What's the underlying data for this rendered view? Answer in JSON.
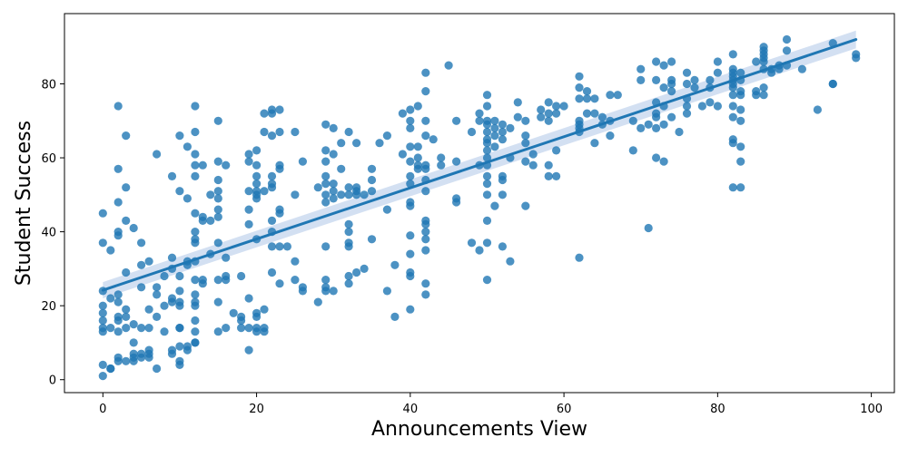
{
  "chart_data": {
    "type": "scatter",
    "title": "",
    "xlabel": "Announcements View",
    "ylabel": "Student Success",
    "xlim": [
      -5,
      103
    ],
    "ylim": [
      -3.5,
      99
    ],
    "xticks": [
      0,
      20,
      40,
      60,
      80,
      100
    ],
    "yticks": [
      0,
      20,
      40,
      60,
      80
    ],
    "grid": false,
    "legend": "none",
    "colors": {
      "points": "#1f77b4",
      "line": "#1f77b4",
      "band": "#aec7e8"
    },
    "regression": {
      "x": [
        0,
        98
      ],
      "y": [
        24.2,
        92.0
      ],
      "ci_lower": [
        22.0,
        89.6
      ],
      "ci_upper": [
        26.4,
        94.4
      ]
    },
    "points": [
      [
        0,
        1
      ],
      [
        0,
        4
      ],
      [
        0,
        13
      ],
      [
        0,
        14
      ],
      [
        0,
        16
      ],
      [
        0,
        18
      ],
      [
        0,
        20
      ],
      [
        0,
        24
      ],
      [
        0,
        37
      ],
      [
        0,
        45
      ],
      [
        1,
        3
      ],
      [
        1,
        3
      ],
      [
        1,
        14
      ],
      [
        1,
        22
      ],
      [
        1,
        35
      ],
      [
        2,
        5
      ],
      [
        2,
        6
      ],
      [
        2,
        13
      ],
      [
        2,
        16
      ],
      [
        2,
        17
      ],
      [
        2,
        21
      ],
      [
        2,
        23
      ],
      [
        2,
        39
      ],
      [
        2,
        40
      ],
      [
        2,
        48
      ],
      [
        2,
        57
      ],
      [
        2,
        74
      ],
      [
        3,
        5
      ],
      [
        3,
        14
      ],
      [
        3,
        17
      ],
      [
        3,
        19
      ],
      [
        3,
        29
      ],
      [
        3,
        43
      ],
      [
        3,
        52
      ],
      [
        3,
        66
      ],
      [
        4,
        5
      ],
      [
        4,
        6
      ],
      [
        4,
        7
      ],
      [
        4,
        10
      ],
      [
        4,
        15
      ],
      [
        4,
        41
      ],
      [
        5,
        6
      ],
      [
        5,
        7
      ],
      [
        5,
        14
      ],
      [
        5,
        25
      ],
      [
        5,
        31
      ],
      [
        5,
        37
      ],
      [
        6,
        6
      ],
      [
        6,
        7
      ],
      [
        6,
        8
      ],
      [
        6,
        14
      ],
      [
        6,
        19
      ],
      [
        6,
        32
      ],
      [
        7,
        3
      ],
      [
        7,
        17
      ],
      [
        7,
        23
      ],
      [
        7,
        25
      ],
      [
        7,
        61
      ],
      [
        8,
        13
      ],
      [
        8,
        20
      ],
      [
        8,
        28
      ],
      [
        9,
        7
      ],
      [
        9,
        8
      ],
      [
        9,
        21
      ],
      [
        9,
        22
      ],
      [
        9,
        30
      ],
      [
        9,
        33
      ],
      [
        9,
        55
      ],
      [
        10,
        4
      ],
      [
        10,
        5
      ],
      [
        10,
        9
      ],
      [
        10,
        14
      ],
      [
        10,
        14
      ],
      [
        10,
        20
      ],
      [
        10,
        21
      ],
      [
        10,
        24
      ],
      [
        10,
        28
      ],
      [
        10,
        51
      ],
      [
        10,
        66
      ],
      [
        11,
        8
      ],
      [
        11,
        9
      ],
      [
        11,
        31
      ],
      [
        11,
        32
      ],
      [
        11,
        49
      ],
      [
        11,
        63
      ],
      [
        12,
        10
      ],
      [
        12,
        10
      ],
      [
        12,
        13
      ],
      [
        12,
        16
      ],
      [
        12,
        20
      ],
      [
        12,
        21
      ],
      [
        12,
        23
      ],
      [
        12,
        27
      ],
      [
        12,
        32
      ],
      [
        12,
        37
      ],
      [
        12,
        38
      ],
      [
        12,
        40
      ],
      [
        12,
        45
      ],
      [
        12,
        55
      ],
      [
        12,
        58
      ],
      [
        12,
        61
      ],
      [
        12,
        67
      ],
      [
        12,
        74
      ],
      [
        13,
        26
      ],
      [
        13,
        27
      ],
      [
        13,
        43
      ],
      [
        13,
        44
      ],
      [
        13,
        58
      ],
      [
        14,
        34
      ],
      [
        14,
        43
      ],
      [
        14,
        50
      ],
      [
        15,
        13
      ],
      [
        15,
        21
      ],
      [
        15,
        27
      ],
      [
        15,
        37
      ],
      [
        15,
        44
      ],
      [
        15,
        46
      ],
      [
        15,
        49
      ],
      [
        15,
        51
      ],
      [
        15,
        54
      ],
      [
        15,
        59
      ],
      [
        15,
        70
      ],
      [
        16,
        14
      ],
      [
        16,
        27
      ],
      [
        16,
        28
      ],
      [
        16,
        33
      ],
      [
        16,
        58
      ],
      [
        17,
        18
      ],
      [
        18,
        14
      ],
      [
        18,
        16
      ],
      [
        18,
        17
      ],
      [
        18,
        28
      ],
      [
        19,
        8
      ],
      [
        19,
        14
      ],
      [
        19,
        22
      ],
      [
        19,
        42
      ],
      [
        19,
        46
      ],
      [
        19,
        51
      ],
      [
        19,
        59
      ],
      [
        19,
        61
      ],
      [
        20,
        13
      ],
      [
        20,
        14
      ],
      [
        20,
        17
      ],
      [
        20,
        18
      ],
      [
        20,
        38
      ],
      [
        20,
        49
      ],
      [
        20,
        50
      ],
      [
        20,
        51
      ],
      [
        20,
        53
      ],
      [
        20,
        55
      ],
      [
        20,
        58
      ],
      [
        20,
        62
      ],
      [
        21,
        13
      ],
      [
        21,
        14
      ],
      [
        21,
        19
      ],
      [
        21,
        51
      ],
      [
        21,
        67
      ],
      [
        21,
        72
      ],
      [
        22,
        29
      ],
      [
        22,
        36
      ],
      [
        22,
        40
      ],
      [
        22,
        43
      ],
      [
        22,
        52
      ],
      [
        22,
        53
      ],
      [
        22,
        55
      ],
      [
        22,
        66
      ],
      [
        22,
        72
      ],
      [
        22,
        73
      ],
      [
        23,
        26
      ],
      [
        23,
        36
      ],
      [
        23,
        45
      ],
      [
        23,
        46
      ],
      [
        23,
        57
      ],
      [
        23,
        58
      ],
      [
        23,
        67
      ],
      [
        23,
        73
      ],
      [
        24,
        36
      ],
      [
        25,
        27
      ],
      [
        25,
        32
      ],
      [
        25,
        50
      ],
      [
        25,
        67
      ],
      [
        26,
        24
      ],
      [
        26,
        25
      ],
      [
        26,
        59
      ],
      [
        28,
        21
      ],
      [
        28,
        52
      ],
      [
        29,
        24
      ],
      [
        29,
        25
      ],
      [
        29,
        27
      ],
      [
        29,
        36
      ],
      [
        29,
        48
      ],
      [
        29,
        50
      ],
      [
        29,
        53
      ],
      [
        29,
        55
      ],
      [
        29,
        59
      ],
      [
        29,
        62
      ],
      [
        29,
        69
      ],
      [
        30,
        24
      ],
      [
        30,
        49
      ],
      [
        30,
        51
      ],
      [
        30,
        53
      ],
      [
        30,
        61
      ],
      [
        30,
        68
      ],
      [
        31,
        50
      ],
      [
        31,
        57
      ],
      [
        31,
        64
      ],
      [
        32,
        26
      ],
      [
        32,
        28
      ],
      [
        32,
        36
      ],
      [
        32,
        37
      ],
      [
        32,
        40
      ],
      [
        32,
        42
      ],
      [
        32,
        50
      ],
      [
        32,
        52
      ],
      [
        32,
        67
      ],
      [
        33,
        29
      ],
      [
        33,
        50
      ],
      [
        33,
        51
      ],
      [
        33,
        52
      ],
      [
        33,
        64
      ],
      [
        34,
        30
      ],
      [
        34,
        50
      ],
      [
        35,
        38
      ],
      [
        35,
        51
      ],
      [
        35,
        54
      ],
      [
        35,
        57
      ],
      [
        36,
        64
      ],
      [
        37,
        24
      ],
      [
        37,
        46
      ],
      [
        37,
        66
      ],
      [
        38,
        17
      ],
      [
        38,
        31
      ],
      [
        39,
        61
      ],
      [
        39,
        72
      ],
      [
        40,
        19
      ],
      [
        40,
        28
      ],
      [
        40,
        29
      ],
      [
        40,
        34
      ],
      [
        40,
        39
      ],
      [
        40,
        47
      ],
      [
        40,
        48
      ],
      [
        40,
        53
      ],
      [
        40,
        55
      ],
      [
        40,
        59
      ],
      [
        40,
        63
      ],
      [
        40,
        68
      ],
      [
        40,
        70
      ],
      [
        40,
        73
      ],
      [
        41,
        57
      ],
      [
        41,
        58
      ],
      [
        41,
        60
      ],
      [
        41,
        63
      ],
      [
        41,
        74
      ],
      [
        42,
        23
      ],
      [
        42,
        26
      ],
      [
        42,
        35
      ],
      [
        42,
        38
      ],
      [
        42,
        40
      ],
      [
        42,
        42
      ],
      [
        42,
        43
      ],
      [
        42,
        51
      ],
      [
        42,
        54
      ],
      [
        42,
        57
      ],
      [
        42,
        58
      ],
      [
        42,
        66
      ],
      [
        42,
        70
      ],
      [
        42,
        78
      ],
      [
        42,
        83
      ],
      [
        43,
        65
      ],
      [
        44,
        58
      ],
      [
        44,
        60
      ],
      [
        45,
        85
      ],
      [
        46,
        48
      ],
      [
        46,
        49
      ],
      [
        46,
        59
      ],
      [
        46,
        70
      ],
      [
        48,
        37
      ],
      [
        48,
        67
      ],
      [
        49,
        35
      ],
      [
        49,
        58
      ],
      [
        49,
        70
      ],
      [
        49,
        72
      ],
      [
        50,
        27
      ],
      [
        50,
        37
      ],
      [
        50,
        43
      ],
      [
        50,
        50
      ],
      [
        50,
        53
      ],
      [
        50,
        55
      ],
      [
        50,
        58
      ],
      [
        50,
        60
      ],
      [
        50,
        62
      ],
      [
        50,
        64
      ],
      [
        50,
        65
      ],
      [
        50,
        67
      ],
      [
        50,
        69
      ],
      [
        50,
        70
      ],
      [
        50,
        74
      ],
      [
        50,
        77
      ],
      [
        51,
        47
      ],
      [
        51,
        63
      ],
      [
        51,
        66
      ],
      [
        51,
        68
      ],
      [
        51,
        70
      ],
      [
        52,
        36
      ],
      [
        52,
        50
      ],
      [
        52,
        54
      ],
      [
        52,
        55
      ],
      [
        52,
        65
      ],
      [
        52,
        67
      ],
      [
        52,
        69
      ],
      [
        53,
        32
      ],
      [
        53,
        60
      ],
      [
        53,
        68
      ],
      [
        54,
        71
      ],
      [
        54,
        75
      ],
      [
        55,
        47
      ],
      [
        55,
        59
      ],
      [
        55,
        64
      ],
      [
        55,
        66
      ],
      [
        55,
        70
      ],
      [
        56,
        58
      ],
      [
        56,
        61
      ],
      [
        57,
        71
      ],
      [
        57,
        73
      ],
      [
        58,
        55
      ],
      [
        58,
        58
      ],
      [
        58,
        70
      ],
      [
        58,
        72
      ],
      [
        58,
        75
      ],
      [
        59,
        55
      ],
      [
        59,
        62
      ],
      [
        59,
        72
      ],
      [
        59,
        74
      ],
      [
        60,
        74
      ],
      [
        62,
        33
      ],
      [
        62,
        67
      ],
      [
        62,
        68
      ],
      [
        62,
        69
      ],
      [
        62,
        70
      ],
      [
        62,
        76
      ],
      [
        62,
        79
      ],
      [
        62,
        82
      ],
      [
        63,
        72
      ],
      [
        63,
        76
      ],
      [
        63,
        78
      ],
      [
        64,
        64
      ],
      [
        64,
        72
      ],
      [
        64,
        76
      ],
      [
        65,
        69
      ],
      [
        65,
        71
      ],
      [
        66,
        66
      ],
      [
        66,
        70
      ],
      [
        66,
        77
      ],
      [
        67,
        77
      ],
      [
        69,
        62
      ],
      [
        69,
        70
      ],
      [
        70,
        68
      ],
      [
        70,
        81
      ],
      [
        70,
        84
      ],
      [
        71,
        41
      ],
      [
        71,
        69
      ],
      [
        72,
        60
      ],
      [
        72,
        68
      ],
      [
        72,
        71
      ],
      [
        72,
        72
      ],
      [
        72,
        75
      ],
      [
        72,
        81
      ],
      [
        72,
        86
      ],
      [
        73,
        59
      ],
      [
        73,
        69
      ],
      [
        73,
        74
      ],
      [
        73,
        79
      ],
      [
        73,
        85
      ],
      [
        74,
        71
      ],
      [
        74,
        78
      ],
      [
        74,
        80
      ],
      [
        74,
        81
      ],
      [
        74,
        86
      ],
      [
        75,
        67
      ],
      [
        76,
        72
      ],
      [
        76,
        74
      ],
      [
        76,
        76
      ],
      [
        76,
        80
      ],
      [
        76,
        83
      ],
      [
        77,
        79
      ],
      [
        77,
        81
      ],
      [
        78,
        74
      ],
      [
        79,
        75
      ],
      [
        79,
        79
      ],
      [
        79,
        81
      ],
      [
        80,
        74
      ],
      [
        80,
        83
      ],
      [
        80,
        86
      ],
      [
        82,
        52
      ],
      [
        82,
        64
      ],
      [
        82,
        65
      ],
      [
        82,
        71
      ],
      [
        82,
        74
      ],
      [
        82,
        77
      ],
      [
        82,
        79
      ],
      [
        82,
        80
      ],
      [
        82,
        81
      ],
      [
        82,
        82
      ],
      [
        82,
        83
      ],
      [
        82,
        84
      ],
      [
        82,
        88
      ],
      [
        83,
        52
      ],
      [
        83,
        59
      ],
      [
        83,
        63
      ],
      [
        83,
        70
      ],
      [
        83,
        73
      ],
      [
        83,
        77
      ],
      [
        83,
        78
      ],
      [
        83,
        81
      ],
      [
        83,
        83
      ],
      [
        85,
        77
      ],
      [
        85,
        78
      ],
      [
        85,
        86
      ],
      [
        86,
        77
      ],
      [
        86,
        79
      ],
      [
        86,
        84
      ],
      [
        86,
        86
      ],
      [
        86,
        87
      ],
      [
        86,
        88
      ],
      [
        86,
        89
      ],
      [
        86,
        90
      ],
      [
        87,
        83
      ],
      [
        87,
        84
      ],
      [
        88,
        84
      ],
      [
        88,
        85
      ],
      [
        89,
        85
      ],
      [
        89,
        89
      ],
      [
        89,
        92
      ],
      [
        91,
        84
      ],
      [
        93,
        73
      ],
      [
        95,
        80
      ],
      [
        95,
        80
      ],
      [
        95,
        91
      ],
      [
        98,
        87
      ],
      [
        98,
        88
      ]
    ]
  }
}
